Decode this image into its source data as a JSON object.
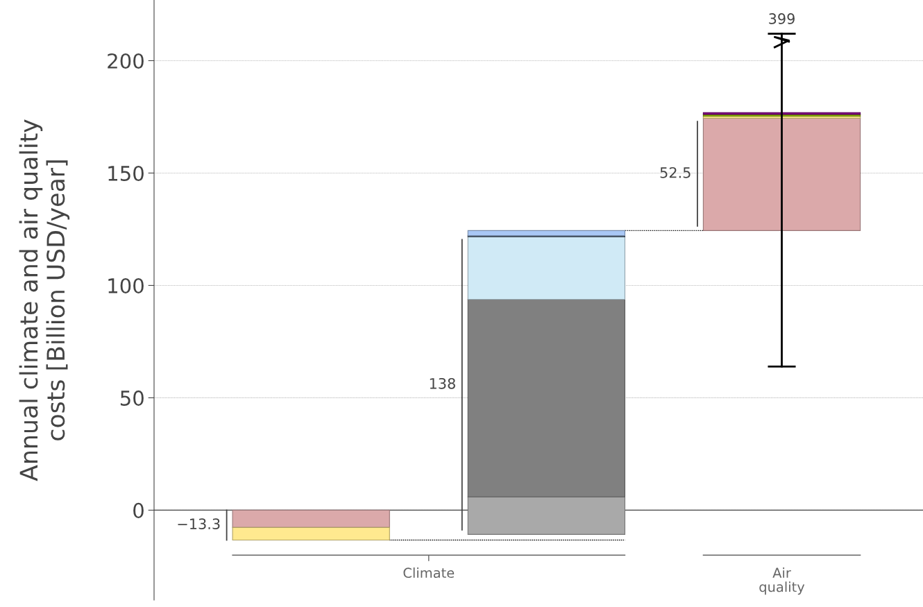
{
  "chart_data": {
    "type": "bar",
    "ylabel": "Annual climate and air quality\ncosts [Billion USD/year]",
    "categories": [
      null,
      null,
      null
    ],
    "series": [
      {
        "color": "#dba9aa",
        "base": [
          0,
          null,
          124.4
        ],
        "values": [
          -7.7,
          null,
          50.0
        ]
      },
      {
        "color": "#ffe98f",
        "base": [
          -7.7,
          null,
          174.4
        ],
        "values": [
          -5.6,
          null,
          0.9
        ]
      },
      {
        "color": "#a9a9a9",
        "base": [
          null,
          -10.8,
          null
        ],
        "values": [
          null,
          16.7,
          null
        ]
      },
      {
        "color": "#808080",
        "base": [
          null,
          5.9,
          null
        ],
        "values": [
          null,
          87.9,
          null
        ]
      },
      {
        "color": "#d0eaf6",
        "base": [
          null,
          93.8,
          null
        ],
        "values": [
          null,
          27.8,
          null
        ]
      },
      {
        "color": "#556677",
        "base": [
          null,
          121.6,
          null
        ],
        "values": [
          null,
          0.6,
          null
        ]
      },
      {
        "color": "#a9c8f5",
        "base": [
          null,
          122.2,
          null
        ],
        "values": [
          null,
          2.2,
          null
        ]
      },
      {
        "color": "#8db600",
        "base": [
          null,
          null,
          175.3
        ],
        "values": [
          null,
          null,
          0.8
        ]
      },
      {
        "color": "#800080",
        "base": [
          null,
          null,
          176.1
        ],
        "values": [
          null,
          null,
          0.8
        ],
        "errors": [
          null,
          null,
          [
            63.9,
            212
          ]
        ]
      }
    ],
    "totals": [
      "−13.3",
      "138",
      "52.5"
    ],
    "annotations": [
      "Climate",
      "Air quality",
      {
        "text": "399",
        "y": 212
      }
    ],
    "ref_lines": [
      {
        "axis": "y",
        "value": 0,
        "color": "#444444"
      }
    ],
    "ylim": [
      -40,
      227
    ],
    "yticks": [
      0,
      50,
      100,
      150,
      200
    ],
    "grid": "y"
  }
}
